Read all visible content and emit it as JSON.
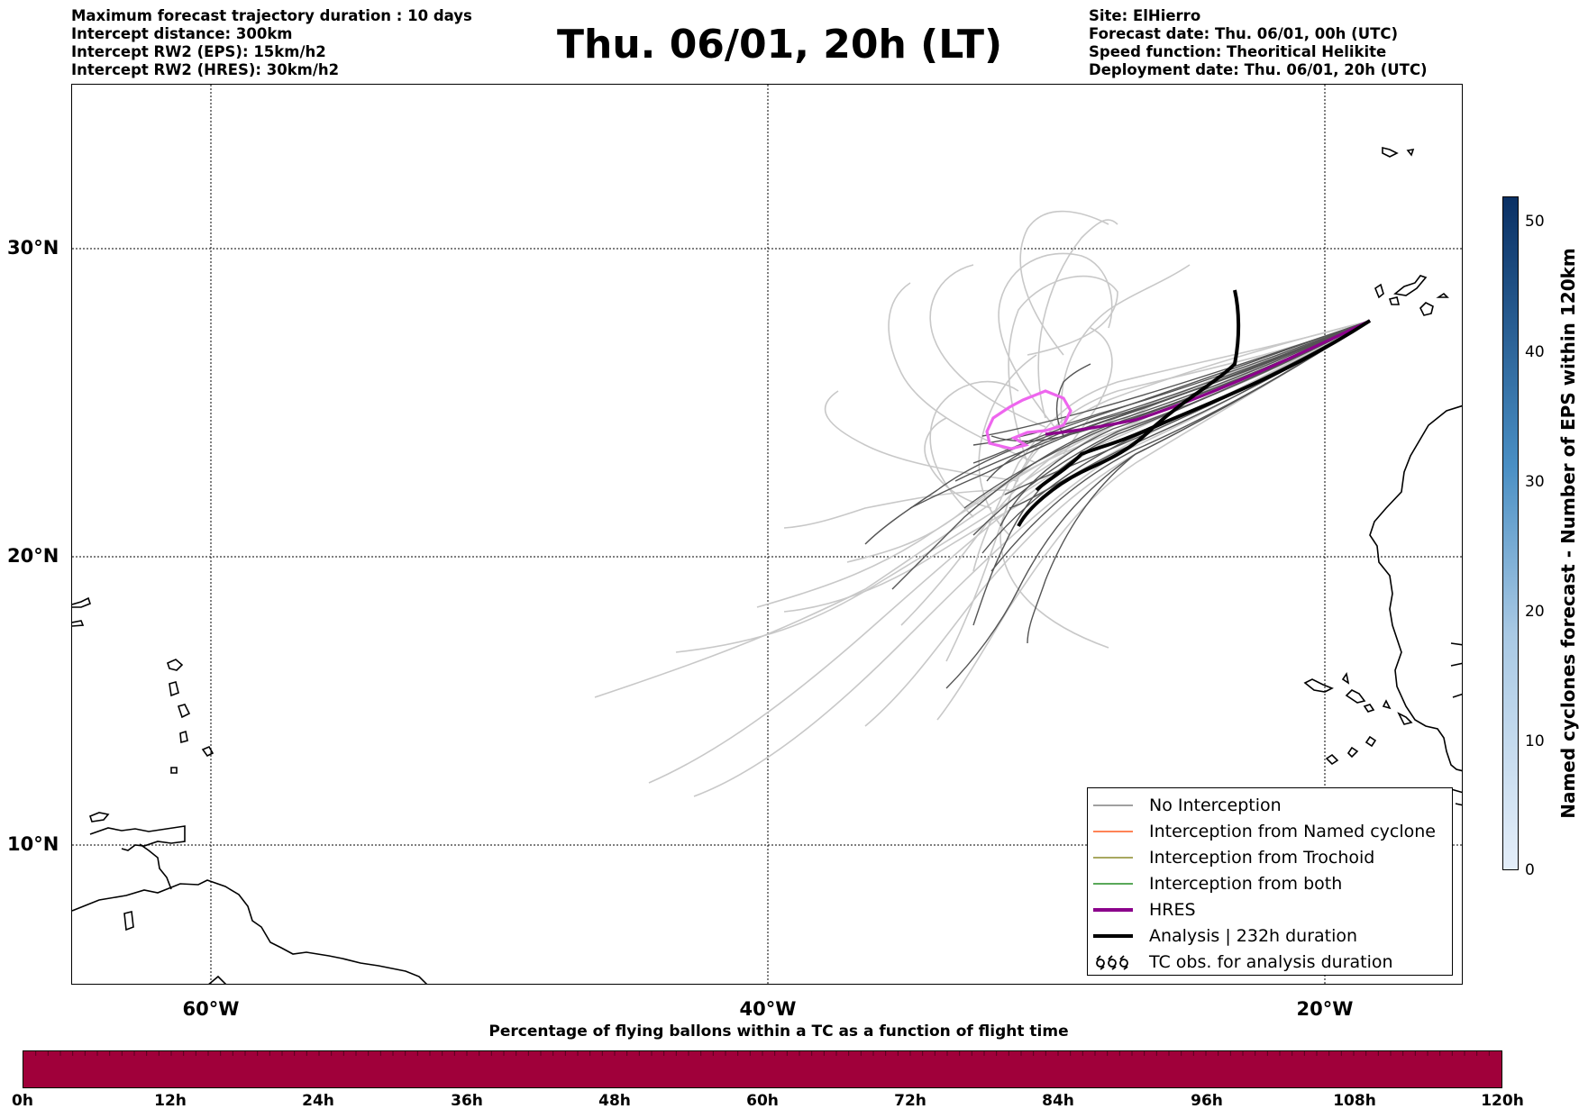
{
  "header": {
    "left": [
      "Maximum forecast trajectory duration : 10 days",
      "Intercept distance: 300km",
      "Intercept RW2 (EPS):  15km/h2",
      "Intercept RW2 (HRES): 30km/h2"
    ],
    "right": [
      "Site: ElHierro",
      "Forecast date: Thu. 06/01, 00h (UTC)",
      "Speed function: Theoritical Helikite",
      "Deployment date: Thu. 06/01, 20h (UTC)"
    ],
    "title": "Thu. 06/01, 20h (LT)"
  },
  "map": {
    "lat_labels": [
      "30°N",
      "20°N",
      "10°N"
    ],
    "lon_labels": [
      "60°W",
      "40°W",
      "20°W"
    ],
    "colors": {
      "eps_light": "#c8c8c8",
      "eps_dark": "#555555",
      "hres": "#8b008b",
      "analysis": "#000000",
      "contour": "#ee66ee",
      "coast": "#000000"
    }
  },
  "legend": {
    "items": [
      {
        "label": "No Interception",
        "color": "#808080"
      },
      {
        "label": "Interception from Named cyclone",
        "color": "#ff5a1e"
      },
      {
        "label": "Interception from Trochoid",
        "color": "#8b8b2a"
      },
      {
        "label": "Interception from both",
        "color": "#228b22"
      },
      {
        "label": "HRES",
        "color": "#8b008b"
      },
      {
        "label": "Analysis | 232h duration",
        "color": "#000000"
      },
      {
        "label": "TC obs. for analysis duration",
        "color": "#000000"
      }
    ]
  },
  "colorbar": {
    "label": "Named cyclones forecast - Number of EPS within 120km",
    "ticks": [
      "50",
      "40",
      "30",
      "20",
      "10",
      "0"
    ],
    "min": 0,
    "max": 52,
    "color_low": "#e4eef9",
    "color_high": "#0a3064"
  },
  "bottom_bar": {
    "title": "Percentage of flying ballons within a TC as a function of flight time",
    "ticks": [
      "0h",
      "12h",
      "24h",
      "36h",
      "48h",
      "60h",
      "72h",
      "84h",
      "96h",
      "108h",
      "120h"
    ],
    "fill_color": "#a0003a"
  }
}
